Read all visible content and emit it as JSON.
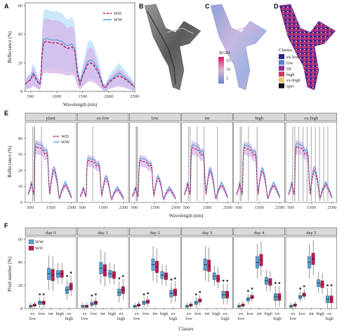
{
  "panels": {
    "A": "A",
    "B": "B",
    "C": "C",
    "D": "D",
    "E": "E",
    "F": "F"
  },
  "colors": {
    "WD": "#c2185b",
    "WW": "#56a4dc",
    "WD_band": "#d6b4e8",
    "WW_band": "#bfe3f7"
  },
  "chart_data": [
    {
      "id": "A",
      "type": "line",
      "xlabel": "Wavelength (nm)",
      "ylabel": "Reflectance (%)",
      "xlim": [
        400,
        2500
      ],
      "ylim": [
        0,
        62
      ],
      "xticks": [
        "500",
        "1000",
        "1500",
        "2000",
        "2500"
      ],
      "yticks": [
        "0",
        "20",
        "40",
        "60"
      ],
      "legend_position": "top-right",
      "x": [
        400,
        450,
        500,
        550,
        600,
        650,
        680,
        700,
        720,
        750,
        800,
        900,
        1000,
        1100,
        1200,
        1300,
        1350,
        1400,
        1450,
        1500,
        1600,
        1650,
        1700,
        1800,
        1850,
        1900,
        1950,
        2000,
        2100,
        2200,
        2300,
        2400,
        2500
      ],
      "series": [
        {
          "name": "WD",
          "values": [
            5,
            7,
            8,
            12,
            9,
            6,
            5,
            10,
            25,
            34,
            35,
            34,
            34,
            33,
            30,
            31,
            28,
            12,
            5,
            11,
            19,
            20,
            19,
            13,
            8,
            3,
            3,
            6,
            9,
            11,
            9,
            6,
            3
          ]
        },
        {
          "name": "WW",
          "values": [
            5,
            7,
            8,
            13,
            10,
            6,
            5,
            11,
            26,
            36,
            37,
            36,
            36,
            35,
            32,
            33,
            30,
            14,
            6,
            12,
            21,
            22,
            21,
            15,
            9,
            3,
            3,
            7,
            10,
            13,
            10,
            7,
            3
          ]
        }
      ]
    },
    {
      "id": "C",
      "type": "heatmap",
      "colorbar_title": "RGRI",
      "colorbar_ticks": [
        "5",
        "10",
        "15"
      ]
    },
    {
      "id": "D",
      "type": "heatmap",
      "legend_title": "Classes",
      "classes": [
        {
          "name": "ex-low",
          "color": "#2a1f8f"
        },
        {
          "name": "low",
          "color": "#5b7fd6"
        },
        {
          "name": "int",
          "color": "#8b2f8e"
        },
        {
          "name": "high",
          "color": "#d13a62"
        },
        {
          "name": "ex-high",
          "color": "#f2c46a"
        },
        {
          "name": "spec",
          "color": "#111111"
        }
      ]
    },
    {
      "id": "E",
      "type": "line",
      "xlabel": "Wavelength (nm)",
      "ylabel": "Reflectance (%)",
      "ylim": [
        0,
        50
      ],
      "yticks": [
        "0",
        "10",
        "20",
        "30",
        "40"
      ],
      "xticks": [
        "500",
        "1500",
        "2500"
      ],
      "facets": [
        "plant",
        "ex-low",
        "low",
        "int",
        "high",
        "ex-high"
      ],
      "peak_scale": [
        1.0,
        0.75,
        0.75,
        0.98,
        0.98,
        1.0
      ],
      "legend": [
        "WD",
        "WW"
      ]
    },
    {
      "id": "F",
      "type": "box",
      "xlabel": "Classes",
      "ylabel": "Pixel number (%)",
      "ylim": [
        0,
        62
      ],
      "yticks": [
        "0",
        "20",
        "40",
        "60"
      ],
      "facets": [
        "day 0",
        "day 1",
        "day 2",
        "day 3",
        "day 4",
        "day 5"
      ],
      "categories": [
        "ex low",
        "low",
        "int",
        "high",
        "ex high"
      ],
      "category_labels": [
        [
          "ex",
          "low"
        ],
        [
          "low"
        ],
        [
          "int"
        ],
        [
          "high"
        ],
        [
          "ex",
          "high"
        ]
      ],
      "legend": [
        "WW",
        "WD"
      ],
      "medians": {
        "WW": [
          [
            2,
            5,
            30,
            30,
            16
          ],
          [
            2,
            4,
            35,
            30,
            14
          ],
          [
            2,
            5,
            38,
            29,
            13
          ],
          [
            2,
            5,
            38,
            28,
            12
          ],
          [
            2,
            8,
            40,
            24,
            10
          ],
          [
            2,
            10,
            40,
            22,
            8
          ]
        ],
        "WD": [
          [
            3,
            5,
            29,
            30,
            19
          ],
          [
            2,
            5,
            33,
            29,
            16
          ],
          [
            3,
            6,
            36,
            28,
            14
          ],
          [
            3,
            7,
            37,
            26,
            12
          ],
          [
            3,
            10,
            42,
            23,
            10
          ],
          [
            3,
            12,
            43,
            21,
            8
          ]
        ]
      }
    }
  ]
}
